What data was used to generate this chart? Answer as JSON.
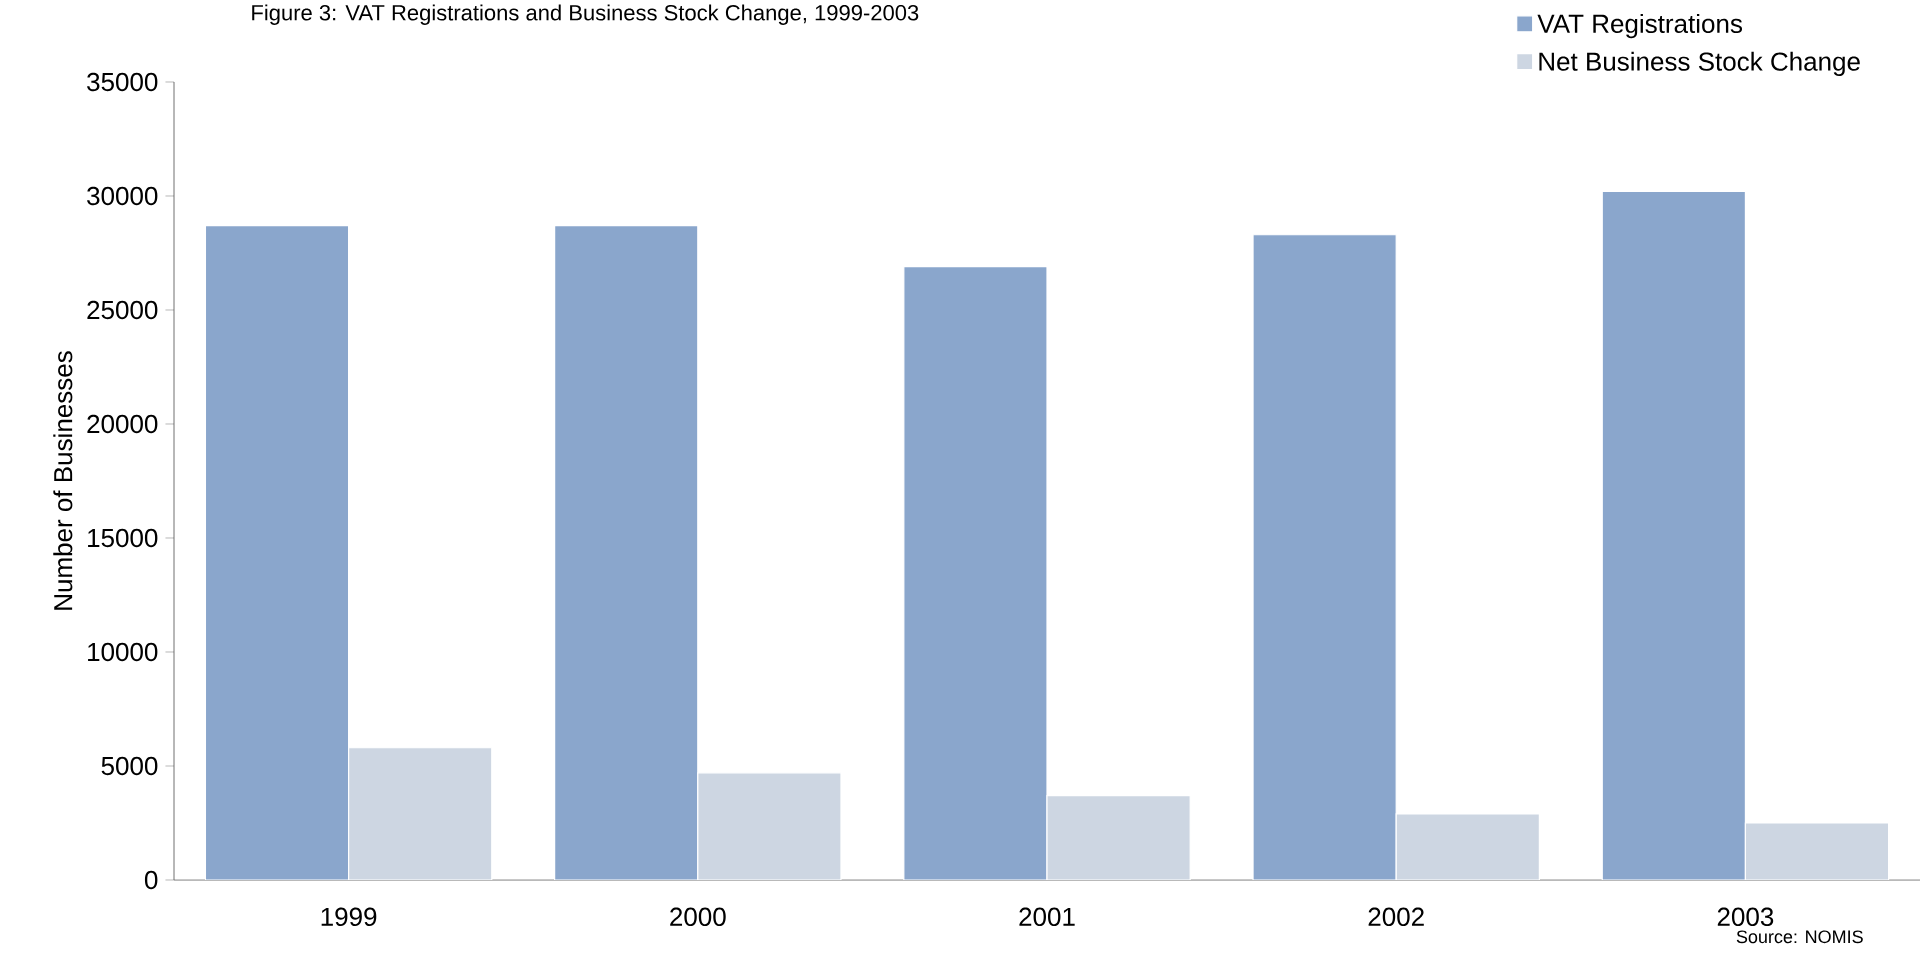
{
  "chart_data": {
    "type": "bar",
    "title": "Figure 3: VAT Registrations and Business Stock Change, 1999-2003",
    "ylabel": "Number of Businesses",
    "categories": [
      "1999",
      "2000",
      "2001",
      "2002",
      "2003"
    ],
    "series": [
      {
        "name": "VAT Registrations",
        "color": "#8aa6cc",
        "values": [
          28700,
          28700,
          26900,
          28300,
          30200
        ]
      },
      {
        "name": "Net Business Stock Change",
        "color": "#cdd6e2",
        "values": [
          5800,
          4700,
          3700,
          2900,
          2500
        ]
      }
    ],
    "ylim": [
      0,
      35000
    ],
    "yticks": [
      0,
      5000,
      10000,
      15000,
      20000,
      25000,
      30000,
      35000
    ],
    "legend": "top right",
    "annotations": [
      "Source: NOMIS"
    ]
  }
}
